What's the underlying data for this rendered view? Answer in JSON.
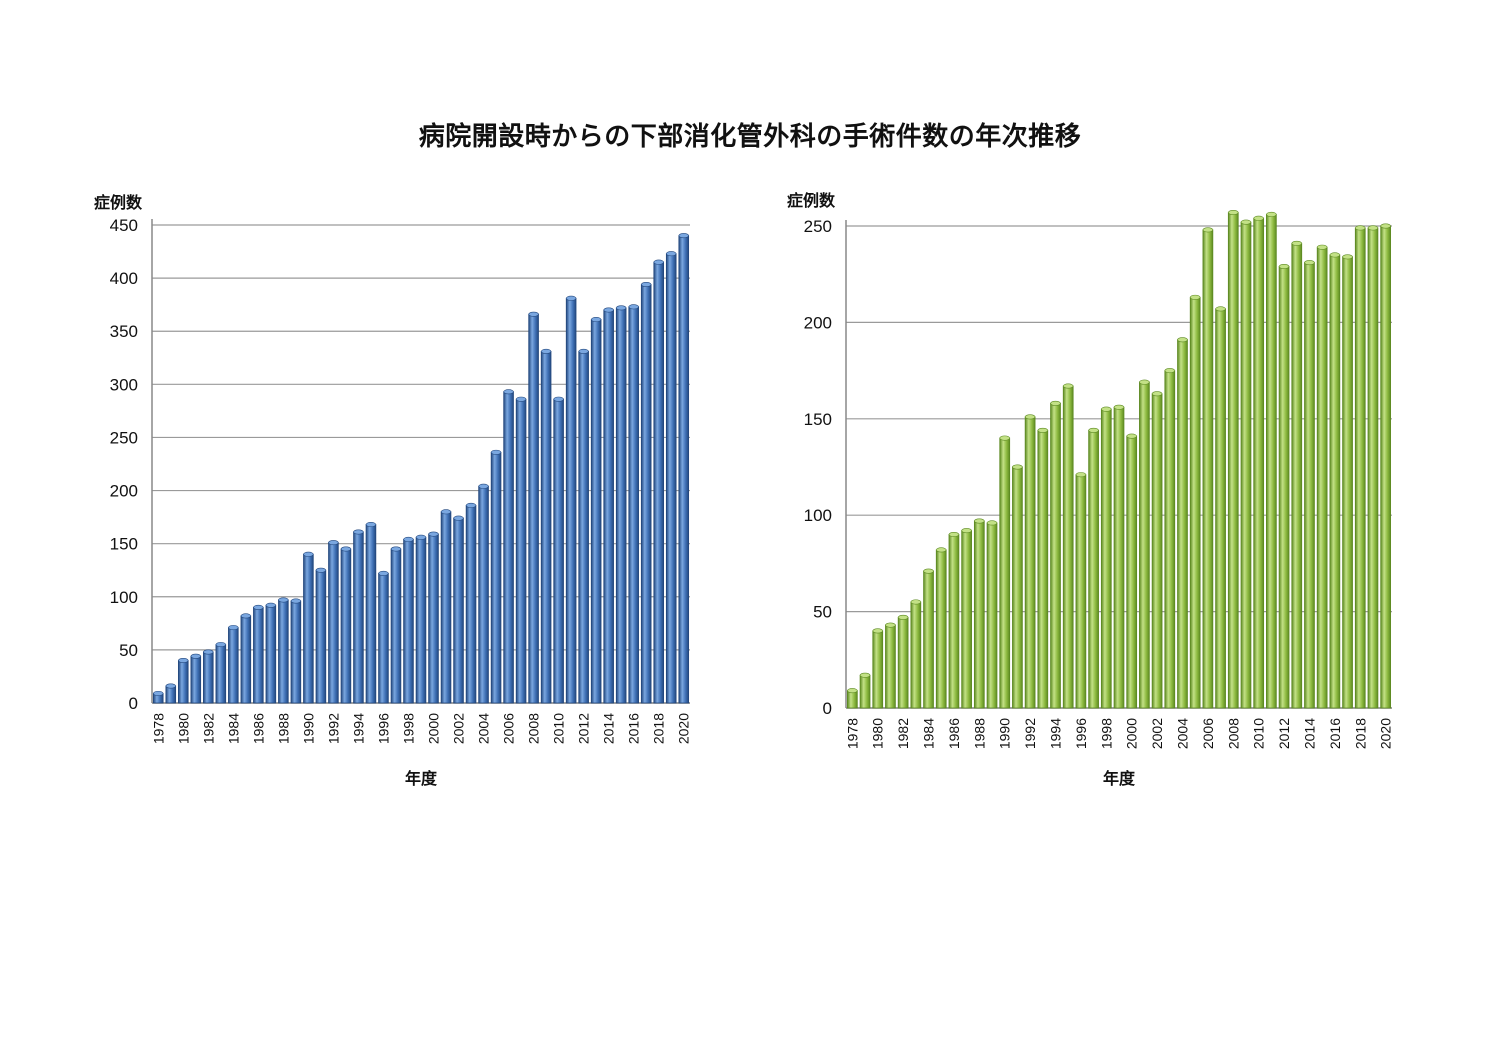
{
  "page": {
    "title": "病院開設時からの下部消化管外科の手術件数の年次推移"
  },
  "colors": {
    "left_bar": "#3e6fb4",
    "left_bar_dark": "#23487e",
    "left_bar_light": "#7aa7e0",
    "right_bar": "#8cb93f",
    "right_bar_dark": "#5d8a22",
    "right_bar_light": "#c3e186",
    "grid": "#9a9a9a"
  },
  "chart_data": [
    {
      "type": "bar",
      "ylabel": "症例数",
      "xlabel": "年度",
      "ylim": [
        0,
        450
      ],
      "yticks": [
        0,
        50,
        100,
        150,
        200,
        250,
        300,
        350,
        400,
        450
      ],
      "grid": true,
      "categories": [
        "1978",
        "1979",
        "1980",
        "1981",
        "1982",
        "1983",
        "1984",
        "1985",
        "1986",
        "1987",
        "1988",
        "1989",
        "1990",
        "1991",
        "1992",
        "1993",
        "1994",
        "1995",
        "1996",
        "1997",
        "1998",
        "1999",
        "2000",
        "2001",
        "2002",
        "2003",
        "2004",
        "2005",
        "2006",
        "2007",
        "2008",
        "2009",
        "2010",
        "2011",
        "2012",
        "2013",
        "2014",
        "2015",
        "2016",
        "2017",
        "2018",
        "2019",
        "2020"
      ],
      "tick_labels": [
        "1978",
        "1980",
        "1982",
        "1984",
        "1986",
        "1988",
        "1990",
        "1992",
        "1994",
        "1996",
        "1998",
        "2000",
        "2002",
        "2004",
        "2006",
        "2008",
        "2010",
        "2012",
        "2014",
        "2016",
        "2018",
        "2020"
      ],
      "values": [
        9,
        16,
        40,
        44,
        48,
        55,
        71,
        82,
        90,
        92,
        97,
        96,
        140,
        125,
        151,
        145,
        161,
        168,
        122,
        145,
        154,
        156,
        159,
        180,
        174,
        186,
        204,
        236,
        293,
        286,
        366,
        331,
        286,
        381,
        331,
        361,
        370,
        372,
        373,
        394,
        415,
        423,
        440
      ]
    },
    {
      "type": "bar",
      "ylabel": "症例数",
      "xlabel": "年度",
      "ylim": [
        0,
        250
      ],
      "yticks": [
        0,
        50,
        100,
        150,
        200,
        250
      ],
      "grid": true,
      "categories": [
        "1978",
        "1979",
        "1980",
        "1981",
        "1982",
        "1983",
        "1984",
        "1985",
        "1986",
        "1987",
        "1988",
        "1989",
        "1990",
        "1991",
        "1992",
        "1993",
        "1994",
        "1995",
        "1996",
        "1997",
        "1998",
        "1999",
        "2000",
        "2001",
        "2002",
        "2003",
        "2004",
        "2005",
        "2006",
        "2007",
        "2008",
        "2009",
        "2010",
        "2011",
        "2012",
        "2013",
        "2014",
        "2015",
        "2016",
        "2017",
        "2018",
        "2019",
        "2020"
      ],
      "tick_labels": [
        "1978",
        "1980",
        "1982",
        "1984",
        "1986",
        "1988",
        "1990",
        "1992",
        "1994",
        "1996",
        "1998",
        "2000",
        "2002",
        "2004",
        "2006",
        "2008",
        "2010",
        "2012",
        "2014",
        "2016",
        "2018",
        "2020"
      ],
      "values": [
        9,
        17,
        40,
        43,
        47,
        55,
        71,
        82,
        90,
        92,
        97,
        96,
        140,
        125,
        151,
        144,
        158,
        167,
        121,
        144,
        155,
        156,
        141,
        169,
        163,
        175,
        191,
        213,
        248,
        207,
        257,
        252,
        254,
        256,
        229,
        241,
        231,
        239,
        235,
        234,
        249,
        249,
        250
      ]
    }
  ]
}
